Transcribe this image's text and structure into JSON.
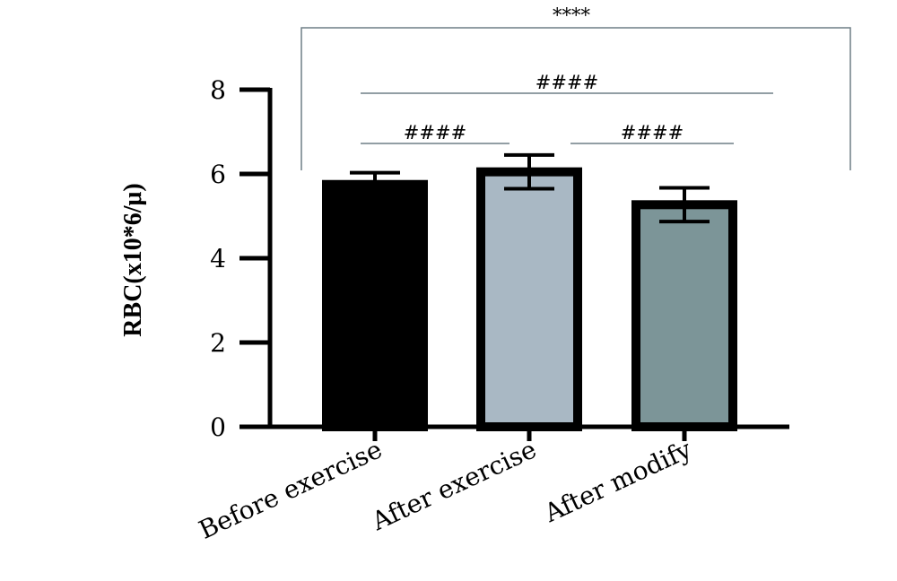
{
  "chart_data": {
    "type": "bar",
    "title": "",
    "xlabel": "",
    "ylabel": "RBC(x10*6/μ)",
    "ylim": [
      0,
      8
    ],
    "yticks": [
      0,
      2,
      4,
      6,
      8
    ],
    "categories": [
      "Before exercise",
      "After exercise",
      "After modify"
    ],
    "values": [
      5.75,
      6.05,
      5.27
    ],
    "errors": [
      0.28,
      0.4,
      0.4
    ],
    "colors": [
      "#000000",
      "#a9b8c4",
      "#7c9598"
    ],
    "significance": [
      {
        "from": 0,
        "to": 1,
        "label": "####"
      },
      {
        "from": 1,
        "to": 2,
        "label": "####"
      },
      {
        "from": 0,
        "to": 2,
        "label": "####"
      },
      {
        "from": 0,
        "to": 2,
        "label": "****",
        "style": "bracket"
      }
    ]
  }
}
